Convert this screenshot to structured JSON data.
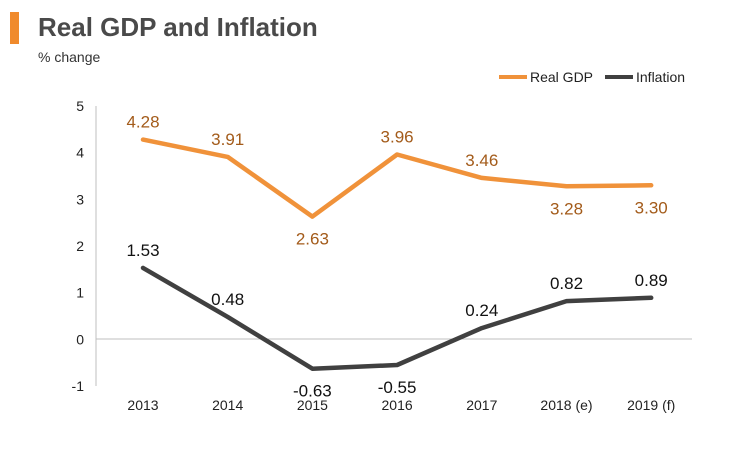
{
  "header": {
    "title": "Real GDP and Inflation",
    "subtitle": "% change"
  },
  "colors": {
    "accent": "#f08a2c",
    "gdp": "#f0923a",
    "gdp_label": "#a35b1a",
    "inflation": "#404040",
    "inflation_label": "#111111",
    "axis": "#bfbfbf"
  },
  "chart_data": {
    "type": "line",
    "title": "Real GDP and Inflation",
    "subtitle": "% change",
    "xlabel": "",
    "ylabel": "% change",
    "categories": [
      "2013",
      "2014",
      "2015",
      "2016",
      "2017",
      "2018 (e)",
      "2019 (f)"
    ],
    "yticks": [
      "5",
      "4",
      "3",
      "2",
      "1",
      "0",
      "-1"
    ],
    "ylim": [
      -1,
      5
    ],
    "grid": false,
    "legend_position": "top-right",
    "series": [
      {
        "name": "Real GDP",
        "color": "#f0923a",
        "values": [
          4.28,
          3.91,
          2.63,
          3.96,
          3.46,
          3.28,
          3.3
        ],
        "labels": [
          "4.28",
          "3.91",
          "2.63",
          "3.96",
          "3.46",
          "3.28",
          "3.30"
        ],
        "label_side": [
          "above",
          "above",
          "below",
          "above",
          "above",
          "below",
          "below"
        ]
      },
      {
        "name": "Inflation",
        "color": "#404040",
        "values": [
          1.53,
          0.48,
          -0.63,
          -0.55,
          0.24,
          0.82,
          0.89
        ],
        "labels": [
          "1.53",
          "0.48",
          "-0.63",
          "-0.55",
          "0.24",
          "0.82",
          "0.89"
        ],
        "label_side": [
          "above",
          "above",
          "below",
          "below",
          "above",
          "above",
          "above"
        ]
      }
    ]
  }
}
